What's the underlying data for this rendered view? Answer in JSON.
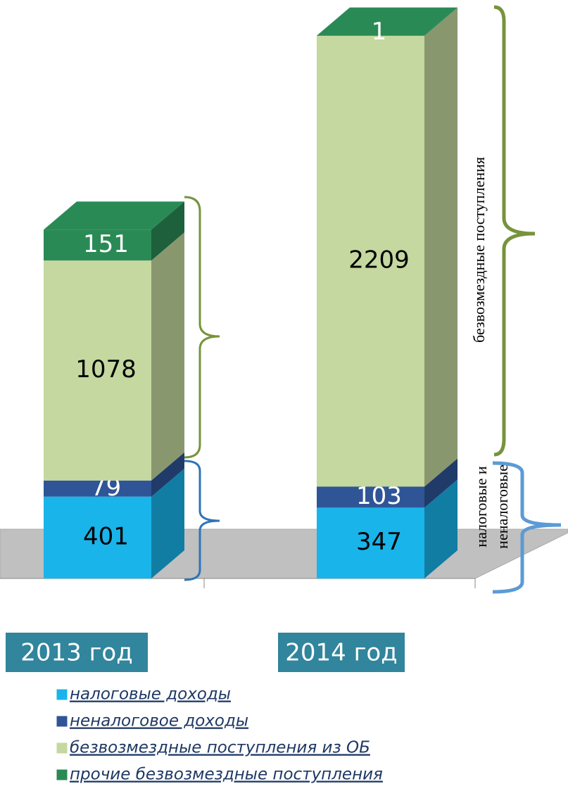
{
  "chart_data": {
    "type": "stacked-bar-3d",
    "categories": [
      "2013 год",
      "2014 год"
    ],
    "series": [
      {
        "name": "налоговые доходы",
        "color": "#19b4ea",
        "label_color": "#000000",
        "values": [
          401,
          347
        ]
      },
      {
        "name": "неналоговое доходы",
        "color": "#2f5597",
        "label_color": "#ffffff",
        "values": [
          79,
          103
        ]
      },
      {
        "name": "безвозмездные поступления из ОБ",
        "color": "#c4d89f",
        "label_color": "#000000",
        "values": [
          1078,
          2209
        ]
      },
      {
        "name": "прочие безвозмездные поступления",
        "color": "#2a8a55",
        "label_color": "#ffffff",
        "values": [
          151,
          1
        ]
      }
    ],
    "ylim": [
      0,
      2800
    ],
    "annotations": [
      "безвозмездные поступления",
      "налоговые и",
      "неналоговые"
    ]
  }
}
